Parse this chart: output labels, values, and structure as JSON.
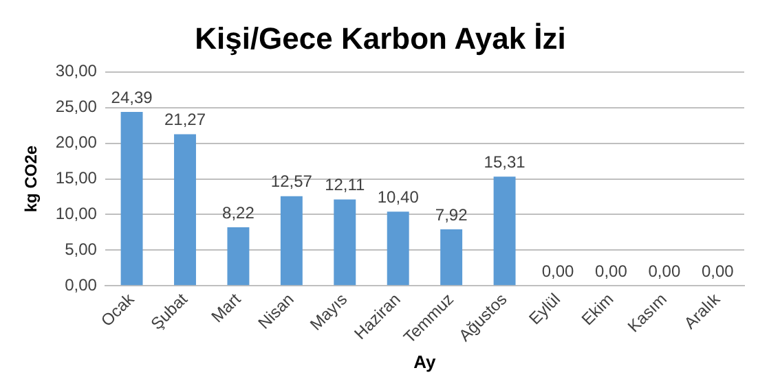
{
  "chart_data": {
    "type": "bar",
    "title": "Kişi/Gece Karbon Ayak İzi",
    "xlabel": "Ay",
    "ylabel": "kg CO2e",
    "categories": [
      "Ocak",
      "Şubat",
      "Mart",
      "Nisan",
      "Mayıs",
      "Haziran",
      "Temmuz",
      "Ağustos",
      "Eylül",
      "Ekim",
      "Kasım",
      "Aralık"
    ],
    "values": [
      24.39,
      21.27,
      8.22,
      12.57,
      12.11,
      10.4,
      7.92,
      15.31,
      0,
      0,
      0,
      0
    ],
    "value_labels": [
      "24,39",
      "21,27",
      "8,22",
      "12,57",
      "12,11",
      "10,40",
      "7,92",
      "15,31",
      "0,00",
      "0,00",
      "0,00",
      "0,00"
    ],
    "color": "#5b9bd5",
    "ylim": [
      0,
      30
    ],
    "yticks": [
      {
        "value": 0,
        "label": "0,00"
      },
      {
        "value": 5,
        "label": "5,00"
      },
      {
        "value": 10,
        "label": "10,00"
      },
      {
        "value": 15,
        "label": "15,00"
      },
      {
        "value": 20,
        "label": "20,00"
      },
      {
        "value": 25,
        "label": "25,00"
      },
      {
        "value": 30,
        "label": "30,00"
      }
    ],
    "grid": "y",
    "legend": false
  }
}
